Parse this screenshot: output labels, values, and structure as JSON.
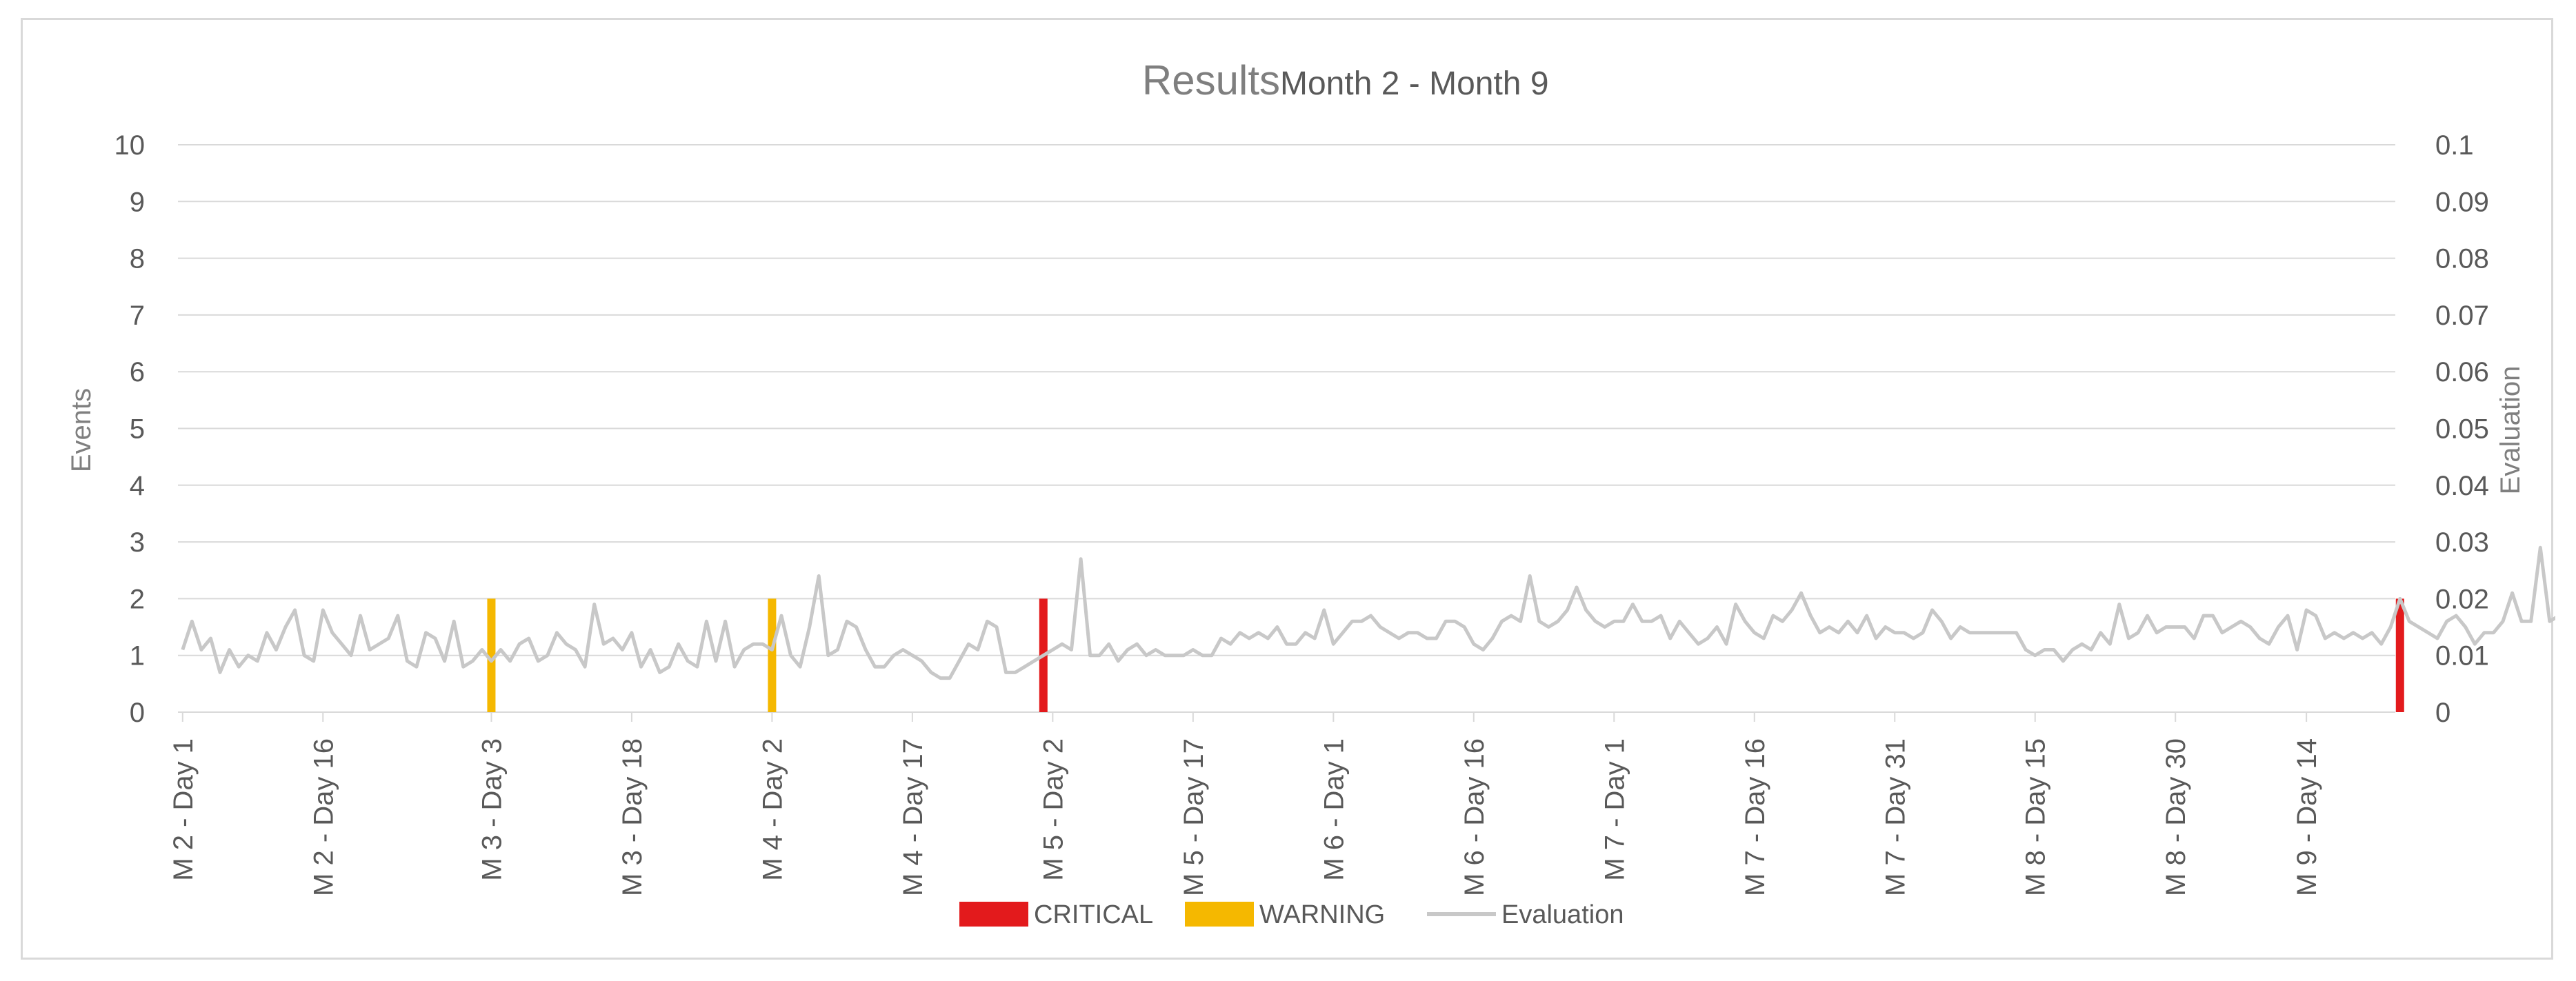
{
  "chart_data": {
    "type": "bar",
    "title": "Results",
    "subtitle": "Month 2 - Month 9",
    "ylabel": "Events",
    "y2label": "Evaluation",
    "ylim": [
      0,
      10
    ],
    "y2lim": [
      0,
      0.1
    ],
    "yticks": [
      "0",
      "1",
      "2",
      "3",
      "4",
      "5",
      "6",
      "7",
      "8",
      "9",
      "10"
    ],
    "y2ticks": [
      "0",
      "0.01",
      "0.02",
      "0.03",
      "0.04",
      "0.05",
      "0.06",
      "0.07",
      "0.08",
      "0.09",
      "0.1"
    ],
    "xtick_labels": [
      "M 2 - Day 1",
      "M 2 - Day 16",
      "M 3 - Day 3",
      "M 3 - Day 18",
      "M 4 - Day 2",
      "M 4 - Day 17",
      "M 5 - Day 2",
      "M 5 - Day 17",
      "M 6 - Day 1",
      "M 6 - Day 16",
      "M 7 - Day 1",
      "M 7 - Day 16",
      "M 7 - Day 31",
      "M 8 - Day 15",
      "M 8 - Day 30",
      "M 9 - Day 14"
    ],
    "x_days": 237,
    "grid": true,
    "legend_position": "bottom",
    "colors": {
      "critical": "#e31a1c",
      "warning": "#f5b800",
      "evaluation": "#c8c8c8",
      "grid": "#d9d9d9",
      "frame": "#d9d9d9"
    },
    "series": [
      {
        "name": "CRITICAL",
        "type": "bar",
        "points": [
          {
            "x": "M 5 - Day 1",
            "value": 2
          },
          {
            "x": "M 9 - Day 24",
            "value": 2
          }
        ]
      },
      {
        "name": "WARNING",
        "type": "bar",
        "points": [
          {
            "x": "M 3 - Day 3",
            "value": 2
          },
          {
            "x": "M 4 - Day 2",
            "value": 2
          }
        ]
      },
      {
        "name": "Evaluation",
        "type": "line",
        "axis": "secondary",
        "values": [
          0.011,
          0.016,
          0.011,
          0.013,
          0.007,
          0.011,
          0.008,
          0.01,
          0.009,
          0.014,
          0.011,
          0.015,
          0.018,
          0.01,
          0.009,
          0.018,
          0.014,
          0.012,
          0.01,
          0.017,
          0.011,
          0.012,
          0.013,
          0.017,
          0.009,
          0.008,
          0.014,
          0.013,
          0.009,
          0.016,
          0.008,
          0.009,
          0.011,
          0.009,
          0.011,
          0.009,
          0.012,
          0.013,
          0.009,
          0.01,
          0.014,
          0.012,
          0.011,
          0.008,
          0.019,
          0.012,
          0.013,
          0.011,
          0.014,
          0.008,
          0.011,
          0.007,
          0.008,
          0.012,
          0.009,
          0.008,
          0.016,
          0.009,
          0.016,
          0.008,
          0.011,
          0.012,
          0.012,
          0.011,
          0.017,
          0.01,
          0.008,
          0.015,
          0.024,
          0.01,
          0.011,
          0.016,
          0.015,
          0.011,
          0.008,
          0.008,
          0.01,
          0.011,
          0.01,
          0.009,
          0.007,
          0.006,
          0.006,
          0.009,
          0.012,
          0.011,
          0.016,
          0.015,
          0.007,
          0.007,
          0.008,
          0.009,
          0.01,
          0.011,
          0.012,
          0.011,
          0.027,
          0.01,
          0.01,
          0.012,
          0.009,
          0.011,
          0.012,
          0.01,
          0.011,
          0.01,
          0.01,
          0.01,
          0.011,
          0.01,
          0.01,
          0.013,
          0.012,
          0.014,
          0.013,
          0.014,
          0.013,
          0.015,
          0.012,
          0.012,
          0.014,
          0.013,
          0.018,
          0.012,
          0.014,
          0.016,
          0.016,
          0.017,
          0.015,
          0.014,
          0.013,
          0.014,
          0.014,
          0.013,
          0.013,
          0.016,
          0.016,
          0.015,
          0.012,
          0.011,
          0.013,
          0.016,
          0.017,
          0.016,
          0.024,
          0.016,
          0.015,
          0.016,
          0.018,
          0.022,
          0.018,
          0.016,
          0.015,
          0.016,
          0.016,
          0.019,
          0.016,
          0.016,
          0.017,
          0.013,
          0.016,
          0.014,
          0.012,
          0.013,
          0.015,
          0.012,
          0.019,
          0.016,
          0.014,
          0.013,
          0.017,
          0.016,
          0.018,
          0.021,
          0.017,
          0.014,
          0.015,
          0.014,
          0.016,
          0.014,
          0.017,
          0.013,
          0.015,
          0.014,
          0.014,
          0.013,
          0.014,
          0.018,
          0.016,
          0.013,
          0.015,
          0.014,
          0.014,
          0.014,
          0.014,
          0.014,
          0.014,
          0.011,
          0.01,
          0.011,
          0.011,
          0.009,
          0.011,
          0.012,
          0.011,
          0.014,
          0.012,
          0.019,
          0.013,
          0.014,
          0.017,
          0.014,
          0.015,
          0.015,
          0.015,
          0.013,
          0.017,
          0.017,
          0.014,
          0.015,
          0.016,
          0.015,
          0.013,
          0.012,
          0.015,
          0.017,
          0.011,
          0.018,
          0.017,
          0.013,
          0.014,
          0.013,
          0.014,
          0.013,
          0.014,
          0.012,
          0.015,
          0.02,
          0.016,
          0.015,
          0.014,
          0.013,
          0.016,
          0.017,
          0.015,
          0.012,
          0.014,
          0.014,
          0.016,
          0.021,
          0.016,
          0.016,
          0.029,
          0.016,
          0.017
        ]
      }
    ],
    "legend": [
      {
        "label": "CRITICAL",
        "symbol": "box",
        "color": "#e31a1c"
      },
      {
        "label": "WARNING",
        "symbol": "box",
        "color": "#f5b800"
      },
      {
        "label": "Evaluation",
        "symbol": "line",
        "color": "#c8c8c8"
      }
    ]
  }
}
